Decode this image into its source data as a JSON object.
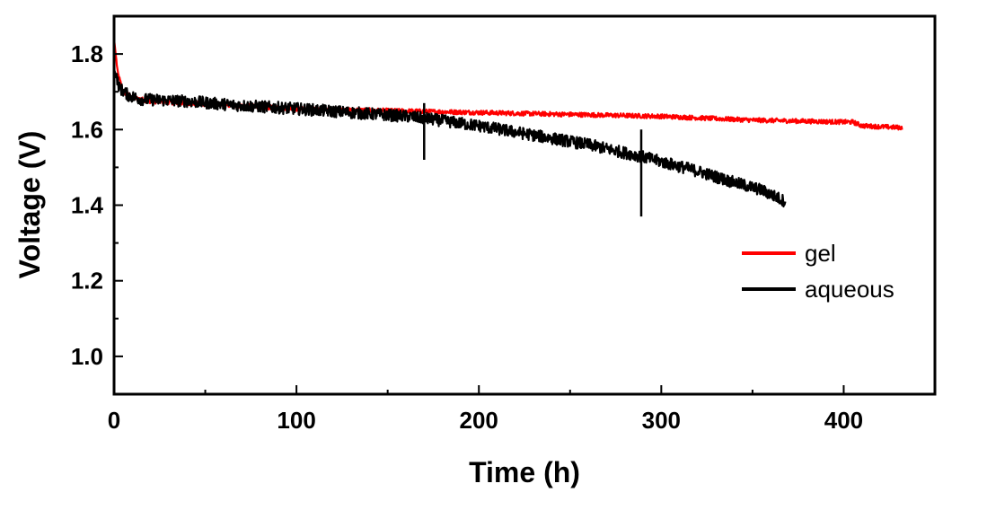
{
  "chart_data": {
    "type": "line",
    "title": "",
    "xlabel": "Time (h)",
    "ylabel": "Voltage (V)",
    "xlim": [
      0,
      450
    ],
    "ylim": [
      0.9,
      1.9
    ],
    "x_ticks": [
      0,
      100,
      200,
      300,
      400
    ],
    "x_tick_labels": [
      "0",
      "100",
      "200",
      "300",
      "400"
    ],
    "y_ticks": [
      1.0,
      1.2,
      1.4,
      1.6,
      1.8
    ],
    "y_tick_labels": [
      "1.0",
      "1.2",
      "1.4",
      "1.6",
      "1.8"
    ],
    "legend_position": "right",
    "grid": false,
    "series": [
      {
        "name": "gel",
        "color": "#ff0000",
        "noise": 0.006,
        "points": [
          [
            0,
            1.84
          ],
          [
            2,
            1.75
          ],
          [
            5,
            1.7
          ],
          [
            10,
            1.685
          ],
          [
            20,
            1.675
          ],
          [
            40,
            1.67
          ],
          [
            60,
            1.665
          ],
          [
            80,
            1.66
          ],
          [
            100,
            1.655
          ],
          [
            150,
            1.65
          ],
          [
            200,
            1.645
          ],
          [
            250,
            1.64
          ],
          [
            300,
            1.635
          ],
          [
            350,
            1.625
          ],
          [
            400,
            1.62
          ],
          [
            405,
            1.62
          ],
          [
            410,
            1.61
          ],
          [
            432,
            1.605
          ]
        ]
      },
      {
        "name": "aqueous",
        "color": "#000000",
        "noise": 0.016,
        "points": [
          [
            0,
            1.76
          ],
          [
            3,
            1.71
          ],
          [
            8,
            1.69
          ],
          [
            15,
            1.68
          ],
          [
            40,
            1.675
          ],
          [
            65,
            1.665
          ],
          [
            100,
            1.655
          ],
          [
            130,
            1.645
          ],
          [
            160,
            1.635
          ],
          [
            170,
            1.63
          ],
          [
            200,
            1.61
          ],
          [
            230,
            1.585
          ],
          [
            260,
            1.56
          ],
          [
            288,
            1.53
          ],
          [
            300,
            1.515
          ],
          [
            320,
            1.49
          ],
          [
            340,
            1.46
          ],
          [
            355,
            1.44
          ],
          [
            368,
            1.41
          ]
        ],
        "spikes": [
          {
            "x": 170,
            "low": 1.52,
            "high": 1.67
          },
          {
            "x": 289,
            "low": 1.37,
            "high": 1.6
          }
        ]
      }
    ]
  }
}
